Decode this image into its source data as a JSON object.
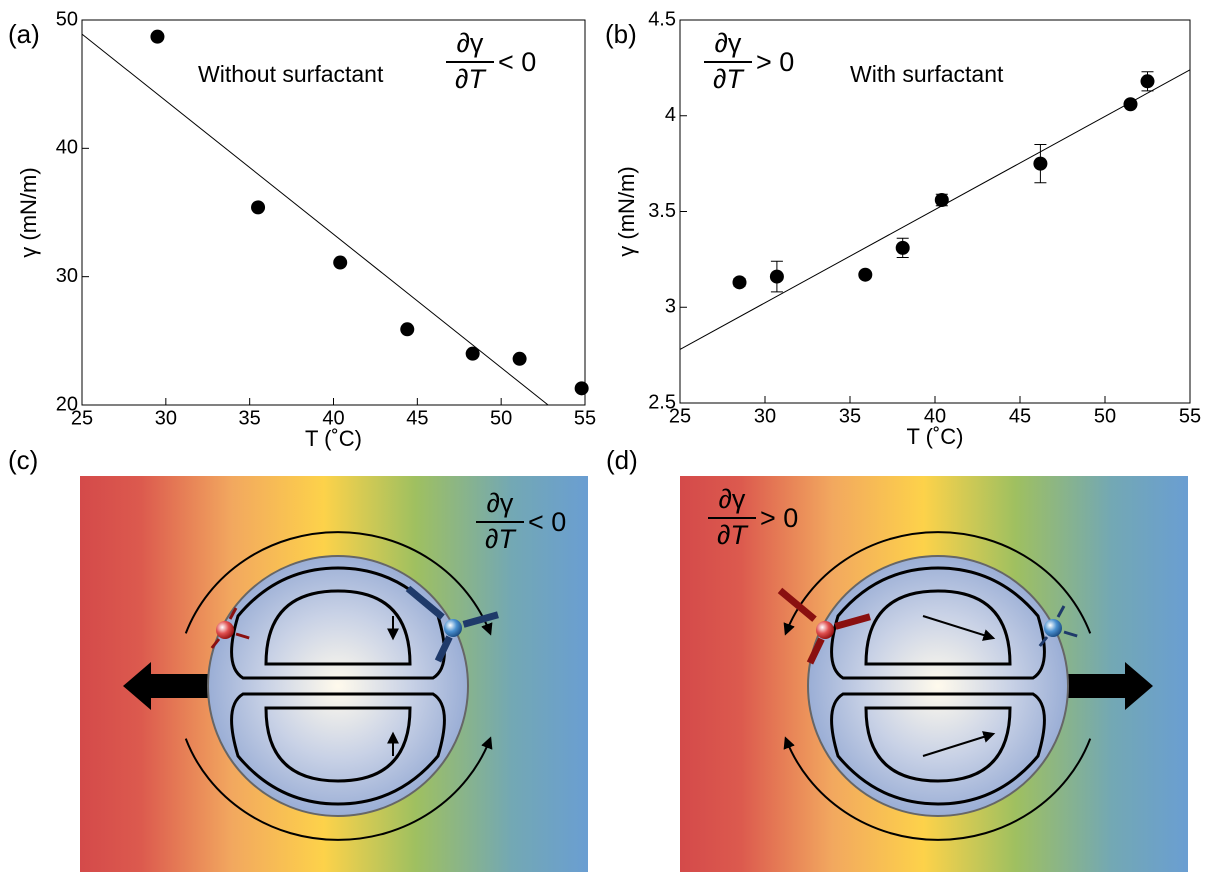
{
  "chart_data": [
    {
      "type": "scatter",
      "label": "(a)",
      "note": "Without surfactant",
      "derivative": {
        "numerator": "∂γ",
        "denominator": "∂T",
        "relation": "< 0"
      },
      "xlabel": "T (˚C)",
      "ylabel": "γ (mN/m)",
      "xlim": [
        25,
        55
      ],
      "xticks": [
        25,
        30,
        35,
        40,
        45,
        50,
        55
      ],
      "ylim": [
        20,
        50
      ],
      "yticks": [
        20,
        30,
        40,
        50
      ],
      "series": [
        {
          "color": "#000000",
          "x": [
            29.5,
            35.5,
            40.4,
            44.4,
            48.3,
            51.1,
            54.8
          ],
          "values": [
            48.7,
            35.4,
            31.1,
            25.9,
            24.0,
            23.6,
            21.3
          ]
        }
      ],
      "fit": {
        "x": [
          25,
          52.8
        ],
        "values": [
          48.9,
          20
        ]
      }
    },
    {
      "type": "scatter",
      "label": "(b)",
      "note": "With surfactant",
      "derivative": {
        "numerator": "∂γ",
        "denominator": "∂T",
        "relation": "> 0"
      },
      "xlabel": "T (˚C)",
      "ylabel": "γ (mN/m)",
      "xlim": [
        25,
        55
      ],
      "xticks": [
        25,
        30,
        35,
        40,
        45,
        50,
        55
      ],
      "ylim": [
        2.5,
        4.5
      ],
      "yticks": [
        2.5,
        3,
        3.5,
        4,
        4.5
      ],
      "series": [
        {
          "color": "#000000",
          "x": [
            28.5,
            30.7,
            35.9,
            38.1,
            40.4,
            46.2,
            51.5,
            52.5
          ],
          "values": [
            3.13,
            3.16,
            3.17,
            3.31,
            3.56,
            3.75,
            4.06,
            4.18
          ],
          "errors": [
            0.02,
            0.08,
            null,
            0.05,
            0.03,
            0.1,
            null,
            0.05
          ]
        }
      ],
      "fit": {
        "x": [
          25,
          55
        ],
        "values": [
          2.78,
          4.24
        ]
      }
    }
  ],
  "diagrams": [
    {
      "label": "(c)",
      "derivative": {
        "numerator": "∂γ",
        "denominator": "∂T",
        "relation": "< 0"
      }
    },
    {
      "label": "(d)",
      "derivative": {
        "numerator": "∂γ",
        "denominator": "∂T",
        "relation": "> 0"
      }
    }
  ]
}
